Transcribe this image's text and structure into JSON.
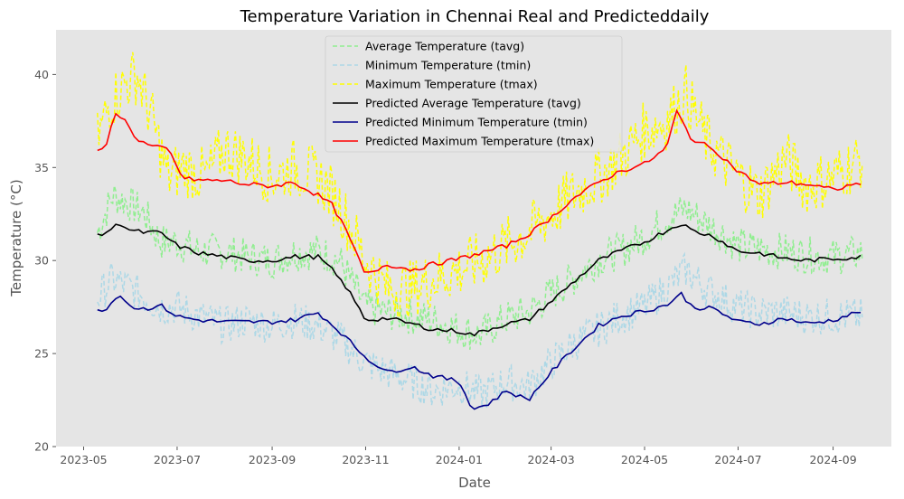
{
  "chart_data": {
    "type": "line",
    "title": "Temperature Variation in Chennai Real and Predicteddaily",
    "xlabel": "Date",
    "ylabel": "Temperature (°C)",
    "xlim": [
      "2023-04-13",
      "2024-10-09"
    ],
    "ylim": [
      20,
      42.4
    ],
    "grid": false,
    "legend_position": "top-center",
    "background": "#e5e5e5",
    "x_ticks": [
      "2023-05-01",
      "2023-07-01",
      "2023-09-01",
      "2023-11-01",
      "2024-01-01",
      "2024-03-01",
      "2024-05-01",
      "2024-07-01",
      "2024-09-01"
    ],
    "x_tick_labels": [
      "2023-05",
      "2023-07",
      "2023-09",
      "2023-11",
      "2024-01",
      "2024-03",
      "2024-05",
      "2024-07",
      "2024-09"
    ],
    "y_ticks": [
      20,
      25,
      30,
      35,
      40
    ],
    "y_tick_labels": [
      "20",
      "25",
      "30",
      "35",
      "40"
    ],
    "x_range_dates": [
      "2023-05-10",
      "2024-09-20"
    ],
    "series": [
      {
        "name": "Average Temperature (tavg)",
        "color": "#90ee90",
        "style": "dashed",
        "x": [
          "2023-05-10",
          "2023-05-20",
          "2023-06-01",
          "2023-06-10",
          "2023-06-20",
          "2023-07-01",
          "2023-07-15",
          "2023-08-01",
          "2023-08-15",
          "2023-09-01",
          "2023-09-15",
          "2023-10-01",
          "2023-10-15",
          "2023-11-01",
          "2023-11-15",
          "2023-12-01",
          "2023-12-15",
          "2024-01-01",
          "2024-01-15",
          "2024-02-01",
          "2024-02-15",
          "2024-03-01",
          "2024-03-15",
          "2024-04-01",
          "2024-04-15",
          "2024-05-01",
          "2024-05-15",
          "2024-05-28",
          "2024-06-10",
          "2024-06-20",
          "2024-07-01",
          "2024-07-15",
          "2024-08-01",
          "2024-08-15",
          "2024-09-01",
          "2024-09-20"
        ],
        "y": [
          31.5,
          33.5,
          33.0,
          32.5,
          31.0,
          31.0,
          30.5,
          30.5,
          30.2,
          30.0,
          30.4,
          30.5,
          30.0,
          27.5,
          27.2,
          27.0,
          26.8,
          26.3,
          26.0,
          26.9,
          27.2,
          28.2,
          29.0,
          30.1,
          30.5,
          31.3,
          32.2,
          32.8,
          32.0,
          31.5,
          30.8,
          30.6,
          30.5,
          30.3,
          30.2,
          30.4
        ]
      },
      {
        "name": "Minimum Temperature (tmin)",
        "color": "#add8e6",
        "style": "dashed",
        "x": [
          "2023-05-10",
          "2023-05-20",
          "2023-06-01",
          "2023-06-10",
          "2023-06-20",
          "2023-07-01",
          "2023-07-15",
          "2023-08-01",
          "2023-08-15",
          "2023-09-01",
          "2023-09-15",
          "2023-10-01",
          "2023-10-15",
          "2023-11-01",
          "2023-11-15",
          "2023-12-01",
          "2023-12-15",
          "2024-01-01",
          "2024-01-15",
          "2024-02-01",
          "2024-02-15",
          "2024-03-01",
          "2024-03-15",
          "2024-04-01",
          "2024-04-15",
          "2024-05-01",
          "2024-05-15",
          "2024-05-28",
          "2024-06-10",
          "2024-06-20",
          "2024-07-01",
          "2024-07-15",
          "2024-08-01",
          "2024-08-15",
          "2024-09-01",
          "2024-09-20"
        ],
        "y": [
          28.0,
          29.0,
          28.5,
          28.0,
          27.5,
          27.5,
          27.0,
          26.5,
          26.8,
          26.5,
          26.8,
          26.5,
          25.8,
          24.5,
          24.0,
          23.5,
          23.0,
          23.3,
          22.8,
          23.5,
          23.2,
          24.5,
          25.5,
          26.3,
          27.0,
          27.5,
          28.5,
          29.5,
          28.5,
          28.0,
          27.5,
          27.2,
          27.2,
          27.0,
          27.0,
          27.0
        ]
      },
      {
        "name": "Maximum Temperature (tmax)",
        "color": "#ffff00",
        "style": "dashed",
        "x": [
          "2023-05-10",
          "2023-05-18",
          "2023-05-28",
          "2023-06-05",
          "2023-06-15",
          "2023-06-25",
          "2023-07-05",
          "2023-07-20",
          "2023-08-01",
          "2023-08-15",
          "2023-09-01",
          "2023-09-15",
          "2023-10-01",
          "2023-10-15",
          "2023-11-01",
          "2023-11-15",
          "2023-12-01",
          "2023-12-15",
          "2024-01-01",
          "2024-01-15",
          "2024-02-01",
          "2024-02-15",
          "2024-03-01",
          "2024-03-15",
          "2024-04-01",
          "2024-04-15",
          "2024-05-01",
          "2024-05-15",
          "2024-05-28",
          "2024-06-10",
          "2024-06-20",
          "2024-07-01",
          "2024-07-15",
          "2024-08-01",
          "2024-08-15",
          "2024-09-01",
          "2024-09-20"
        ],
        "y": [
          36.5,
          38.5,
          39.5,
          40.0,
          37.5,
          34.5,
          35.0,
          34.5,
          36.0,
          35.5,
          34.5,
          35.0,
          34.5,
          33.0,
          30.0,
          28.5,
          28.5,
          29.0,
          29.5,
          30.0,
          30.8,
          31.5,
          32.5,
          33.5,
          34.5,
          35.5,
          37.0,
          37.5,
          39.0,
          36.5,
          35.5,
          34.5,
          33.5,
          35.5,
          34.0,
          34.5,
          35.5
        ]
      },
      {
        "name": "Predicted Average Temperature (tavg)",
        "color": "#000000",
        "style": "solid",
        "x": [
          "2023-05-10",
          "2023-05-15",
          "2023-05-25",
          "2023-06-01",
          "2023-06-10",
          "2023-06-20",
          "2023-07-01",
          "2023-07-15",
          "2023-08-01",
          "2023-08-15",
          "2023-09-01",
          "2023-09-15",
          "2023-10-01",
          "2023-10-10",
          "2023-10-20",
          "2023-11-01",
          "2023-11-15",
          "2023-12-01",
          "2023-12-15",
          "2024-01-01",
          "2024-01-10",
          "2024-01-20",
          "2024-02-01",
          "2024-02-15",
          "2024-03-01",
          "2024-03-15",
          "2024-04-01",
          "2024-04-15",
          "2024-05-01",
          "2024-05-15",
          "2024-05-25",
          "2024-06-01",
          "2024-06-15",
          "2024-07-01",
          "2024-07-15",
          "2024-08-01",
          "2024-08-15",
          "2024-09-01",
          "2024-09-20"
        ],
        "y": [
          31.3,
          31.5,
          32.0,
          31.6,
          31.5,
          31.5,
          30.8,
          30.4,
          30.2,
          30.0,
          30.0,
          30.2,
          30.2,
          29.5,
          28.5,
          26.8,
          26.9,
          26.6,
          26.3,
          26.2,
          26.0,
          26.3,
          26.6,
          26.8,
          27.8,
          28.8,
          30.0,
          30.5,
          31.0,
          31.6,
          32.0,
          31.6,
          31.3,
          30.5,
          30.4,
          30.1,
          30.0,
          30.1,
          30.2
        ]
      },
      {
        "name": "Predicted Minimum Temperature (tmin)",
        "color": "#00008b",
        "style": "solid",
        "x": [
          "2023-05-10",
          "2023-05-15",
          "2023-05-25",
          "2023-06-01",
          "2023-06-10",
          "2023-06-20",
          "2023-07-01",
          "2023-07-15",
          "2023-08-01",
          "2023-08-15",
          "2023-09-01",
          "2023-09-15",
          "2023-10-01",
          "2023-10-15",
          "2023-11-01",
          "2023-11-15",
          "2023-12-01",
          "2023-12-15",
          "2024-01-01",
          "2024-01-10",
          "2024-01-20",
          "2024-02-01",
          "2024-02-15",
          "2024-03-01",
          "2024-03-15",
          "2024-04-01",
          "2024-04-15",
          "2024-05-01",
          "2024-05-15",
          "2024-05-25",
          "2024-06-01",
          "2024-06-15",
          "2024-07-01",
          "2024-07-15",
          "2024-08-01",
          "2024-08-15",
          "2024-09-01",
          "2024-09-20"
        ],
        "y": [
          27.3,
          27.4,
          28.2,
          27.5,
          27.4,
          27.6,
          27.0,
          26.8,
          26.7,
          26.7,
          26.7,
          26.8,
          27.2,
          26.2,
          24.8,
          24.0,
          24.3,
          23.8,
          23.5,
          22.0,
          22.3,
          23.0,
          22.5,
          24.0,
          25.2,
          26.5,
          27.0,
          27.3,
          27.6,
          28.2,
          27.5,
          27.4,
          26.7,
          26.6,
          26.9,
          26.6,
          26.8,
          27.3
        ]
      },
      {
        "name": "Predicted Maximum Temperature (tmax)",
        "color": "#ff0000",
        "style": "solid",
        "x": [
          "2023-05-10",
          "2023-05-15",
          "2023-05-22",
          "2023-05-28",
          "2023-06-05",
          "2023-06-15",
          "2023-06-25",
          "2023-07-05",
          "2023-07-20",
          "2023-08-01",
          "2023-08-15",
          "2023-09-01",
          "2023-09-15",
          "2023-10-01",
          "2023-10-10",
          "2023-10-20",
          "2023-11-01",
          "2023-11-15",
          "2023-12-01",
          "2023-12-15",
          "2024-01-01",
          "2024-01-15",
          "2024-02-01",
          "2024-02-15",
          "2024-03-01",
          "2024-03-15",
          "2024-04-01",
          "2024-04-15",
          "2024-05-01",
          "2024-05-15",
          "2024-05-22",
          "2024-06-01",
          "2024-06-15",
          "2024-07-01",
          "2024-07-15",
          "2024-08-01",
          "2024-08-15",
          "2024-09-01",
          "2024-09-20"
        ],
        "y": [
          35.8,
          36.0,
          38.0,
          37.5,
          36.5,
          36.1,
          36.0,
          34.4,
          34.3,
          34.3,
          34.1,
          34.0,
          34.2,
          33.5,
          33.0,
          31.5,
          29.2,
          29.8,
          29.5,
          29.8,
          30.1,
          30.4,
          30.8,
          31.4,
          32.3,
          33.3,
          34.2,
          34.8,
          35.2,
          36.0,
          38.0,
          36.5,
          36.0,
          34.8,
          34.1,
          34.2,
          34.1,
          33.8,
          34.2
        ]
      }
    ]
  }
}
